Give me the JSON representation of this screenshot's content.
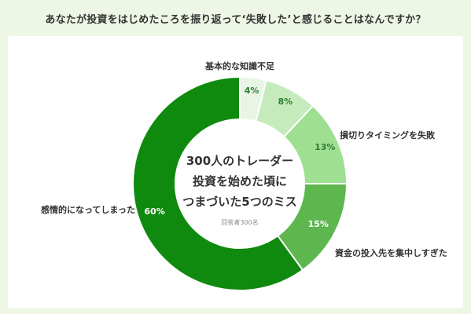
{
  "title": "あなたが投資をはじめたころを振り返って‘失敗した’と感じることはなんですか？",
  "colors": {
    "background": "#eef7e6",
    "card": "#ffffff"
  },
  "chart_data": {
    "type": "pie",
    "donut": true,
    "title": "あなたが投資をはじめたころを振り返って‘失敗した’と感じることはなんですか？",
    "center_text": [
      "300人のトレーダー",
      "投資を始めた頃に",
      "つまづいた5つのミス"
    ],
    "note": "回答者300名",
    "slices": [
      {
        "label": "基本的な知識不足",
        "value": 4,
        "display": "4%",
        "color": "#e8f5e5",
        "text_color": "#2e7d32"
      },
      {
        "label": "",
        "value": 8,
        "display": "8%",
        "color": "#c5ebbd",
        "text_color": "#2e7d32"
      },
      {
        "label": "損切りタイミングを失敗",
        "value": 13,
        "display": "13%",
        "color": "#9edf91",
        "text_color": "#2e7d32"
      },
      {
        "label": "資金の投入先を集中しすぎた",
        "value": 15,
        "display": "15%",
        "color": "#5eb64f",
        "text_color": "#ffffff"
      },
      {
        "label": "感情的になってしまった",
        "value": 60,
        "display": "60%",
        "color": "#0f8a0f",
        "text_color": "#ffffff"
      }
    ]
  }
}
